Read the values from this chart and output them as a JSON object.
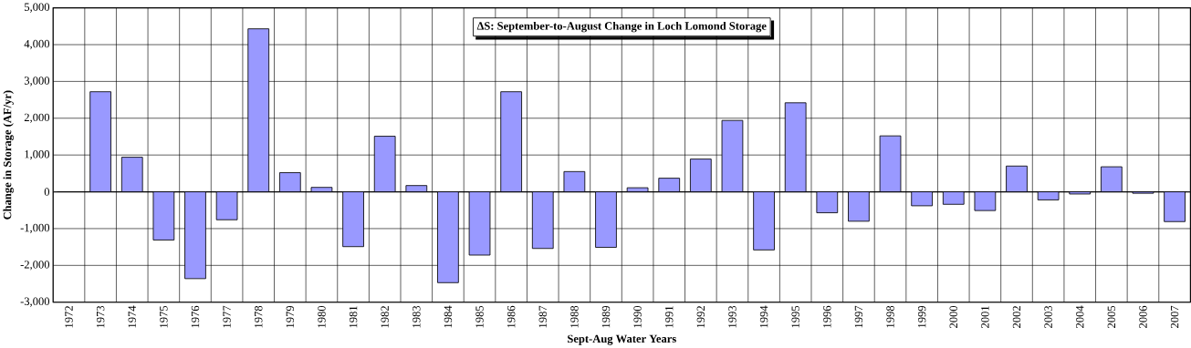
{
  "chart_data": {
    "type": "bar",
    "title": "∆S: September-to-August Change in Loch Lomond Storage",
    "xlabel": "Sept-Aug Water Years",
    "ylabel": "Change in Storage (AF/yr)",
    "categories": [
      "1972",
      "1973",
      "1974",
      "1975",
      "1976",
      "1977",
      "1978",
      "1979",
      "1980",
      "1981",
      "1982",
      "1983",
      "1984",
      "1985",
      "1986",
      "1987",
      "1988",
      "1989",
      "1990",
      "1991",
      "1992",
      "1993",
      "1994",
      "1995",
      "1996",
      "1997",
      "1998",
      "1999",
      "2000",
      "2001",
      "2002",
      "2003",
      "2004",
      "2005",
      "2006",
      "2007"
    ],
    "values": [
      null,
      2720,
      940,
      -1310,
      -2360,
      -760,
      4430,
      520,
      120,
      -1490,
      1510,
      170,
      -2470,
      -1720,
      2720,
      -1540,
      550,
      -1510,
      110,
      370,
      890,
      1940,
      -1580,
      2420,
      -570,
      -800,
      1520,
      -380,
      -340,
      -510,
      700,
      -220,
      -60,
      680,
      -40,
      -810
    ],
    "color": "#9999ff",
    "ylim": [
      -3000,
      5000
    ],
    "yticks": [
      {
        "value": -3000,
        "label": "-3,000"
      },
      {
        "value": -2000,
        "label": "-2,000"
      },
      {
        "value": -1000,
        "label": "-1,000"
      },
      0,
      {
        "value": 1000,
        "label": "1,000"
      },
      {
        "value": 2000,
        "label": "2,000"
      },
      {
        "value": 3000,
        "label": "3,000"
      },
      {
        "value": 4000,
        "label": "4,000"
      },
      {
        "value": 5000,
        "label": "5,000"
      }
    ],
    "grid": true
  }
}
